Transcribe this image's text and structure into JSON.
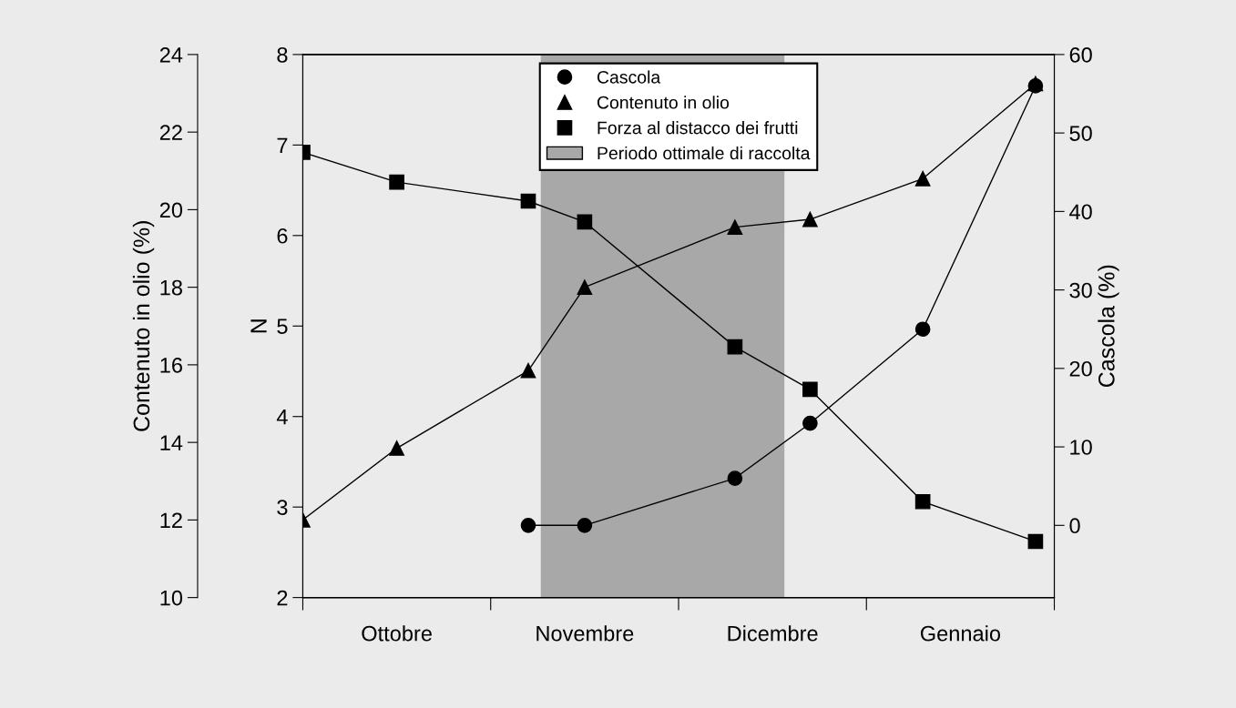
{
  "chart_data": {
    "type": "line",
    "ylabel": "N",
    "y2label": "Cascola (%)",
    "y3label": "Contenuto in olio (%)",
    "categories": [
      null,
      null,
      null,
      null,
      null,
      "Ottobre",
      null,
      null,
      null,
      null,
      null,
      null,
      null,
      null,
      null,
      "Novembre",
      null,
      null,
      null,
      null,
      null,
      null,
      null,
      null,
      null,
      "Dicembre",
      null,
      null,
      null,
      null,
      null,
      null,
      null,
      null,
      null,
      "Gennaio",
      null,
      null,
      null,
      null,
      null
    ],
    "ylim": [
      2,
      8
    ],
    "yticks": [
      2,
      3,
      4,
      5,
      6,
      7,
      8
    ],
    "y2lim": [
      -9.2,
      60
    ],
    "y2ticks": [
      0,
      10,
      20,
      30,
      40,
      50,
      60
    ],
    "y3lim": [
      10,
      24
    ],
    "y3ticks": [
      10,
      12,
      14,
      16,
      18,
      20,
      22,
      24
    ],
    "series": [
      {
        "name": "Cascola",
        "color": "#000000",
        "marker": "circle",
        "axis": "y2",
        "values": [
          null,
          null,
          null,
          null,
          null,
          null,
          null,
          null,
          null,
          null,
          null,
          null,
          0,
          null,
          null,
          0,
          null,
          null,
          null,
          null,
          null,
          null,
          null,
          6,
          null,
          null,
          null,
          13,
          null,
          null,
          null,
          null,
          null,
          25,
          null,
          null,
          null,
          null,
          null,
          56,
          null
        ]
      },
      {
        "name": "Contenuto in olio",
        "color": "#000000",
        "marker": "triangle",
        "axis": "y3",
        "values": [
          12.0,
          null,
          null,
          null,
          null,
          13.85,
          null,
          null,
          null,
          null,
          null,
          null,
          15.85,
          null,
          null,
          18.0,
          null,
          null,
          null,
          null,
          null,
          null,
          null,
          19.55,
          null,
          null,
          null,
          19.75,
          null,
          null,
          null,
          null,
          null,
          20.8,
          null,
          null,
          null,
          null,
          null,
          23.25,
          null
        ]
      },
      {
        "name": "Forza al distacco dei frutti",
        "color": "#000000",
        "marker": "square",
        "values": [
          6.92,
          null,
          null,
          null,
          null,
          6.59,
          null,
          null,
          null,
          null,
          null,
          null,
          6.38,
          null,
          null,
          6.15,
          null,
          null,
          null,
          null,
          null,
          null,
          null,
          4.77,
          null,
          null,
          null,
          4.3,
          null,
          null,
          null,
          null,
          null,
          3.06,
          null,
          null,
          null,
          null,
          null,
          2.62,
          null
        ]
      }
    ],
    "annotations": [
      "Periodo ottimale di raccolta"
    ],
    "legend": "top",
    "grid": false
  }
}
